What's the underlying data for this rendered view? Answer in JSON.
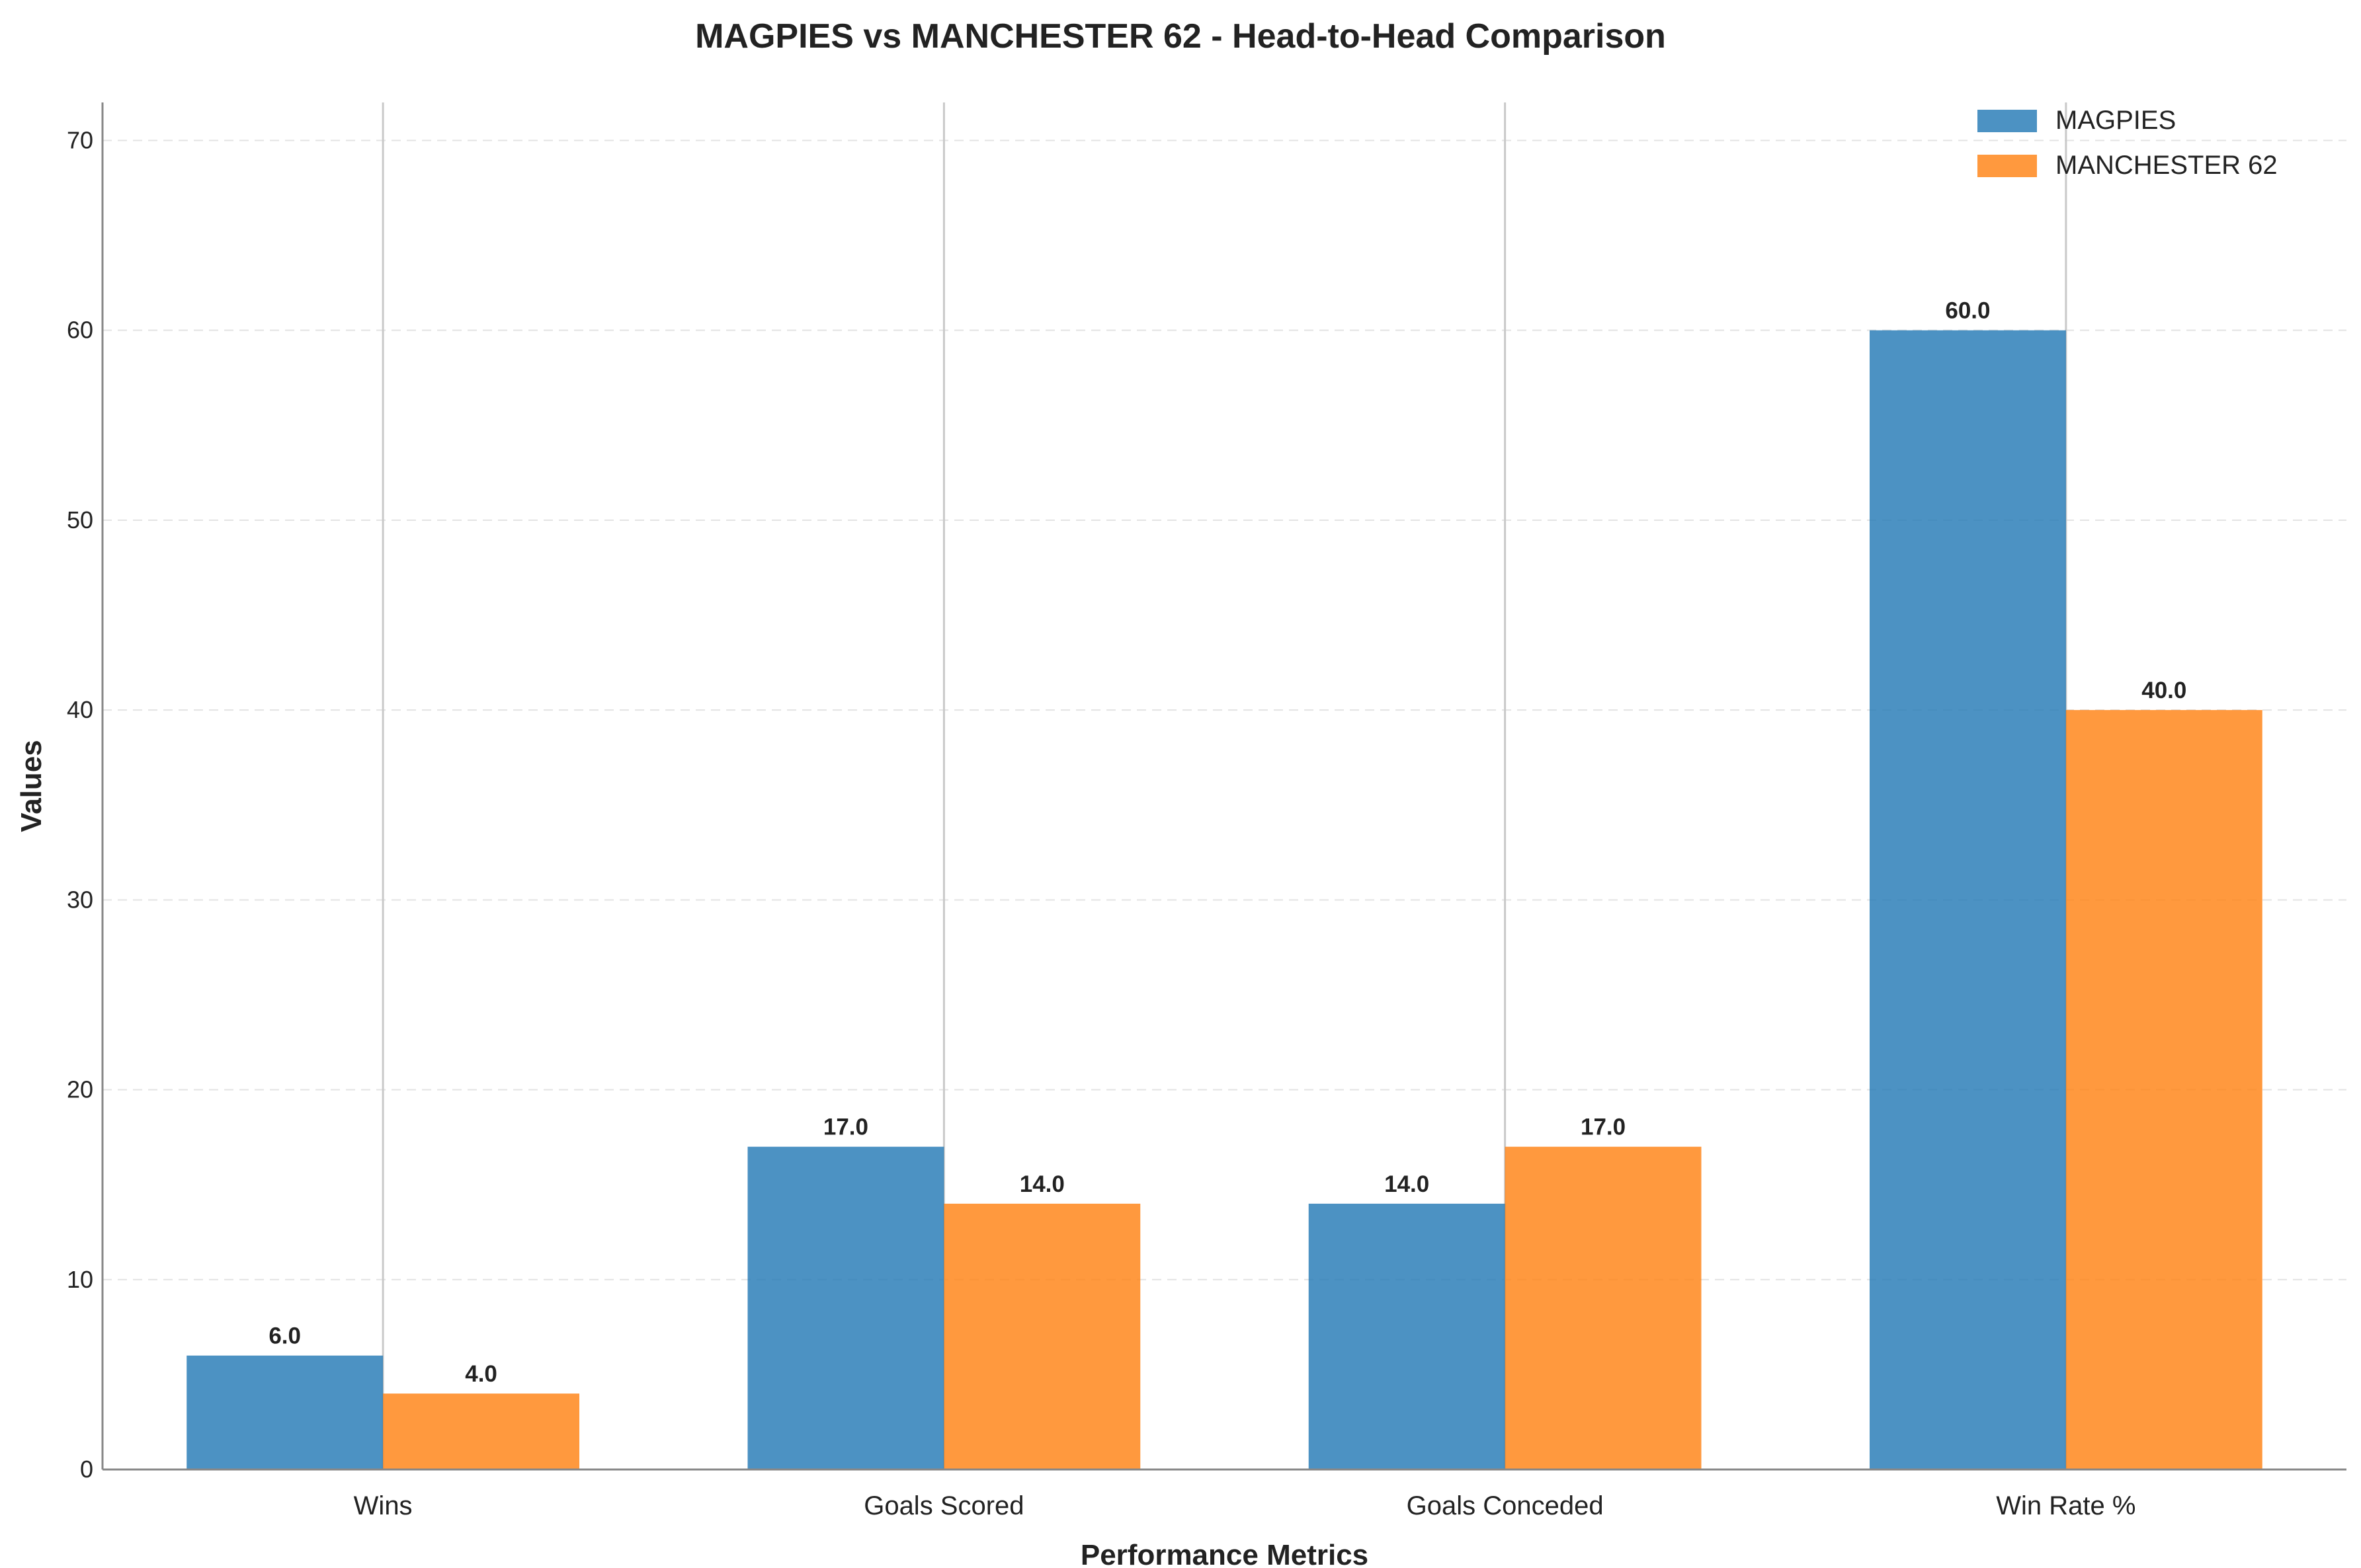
{
  "chart_data": {
    "type": "bar",
    "title": "MAGPIES vs MANCHESTER 62 - Head-to-Head Comparison",
    "xlabel": "Performance Metrics",
    "ylabel": "Values",
    "categories": [
      "Wins",
      "Goals Scored",
      "Goals Conceded",
      "Win Rate %"
    ],
    "series": [
      {
        "name": "MAGPIES",
        "color": "#1f77b4",
        "values": [
          6.0,
          17.0,
          14.0,
          60.0
        ]
      },
      {
        "name": "MANCHESTER 62",
        "color": "#ff7f0e",
        "values": [
          4.0,
          14.0,
          17.0,
          40.0
        ]
      }
    ],
    "ylim": [
      0,
      72
    ],
    "yticks": [
      0,
      10,
      20,
      30,
      40,
      50,
      60,
      70
    ],
    "value_label_format": "one-decimal",
    "grid": {
      "y": "dashed light gray",
      "x": "solid gray at category centers"
    },
    "legend_position": "top-right"
  }
}
